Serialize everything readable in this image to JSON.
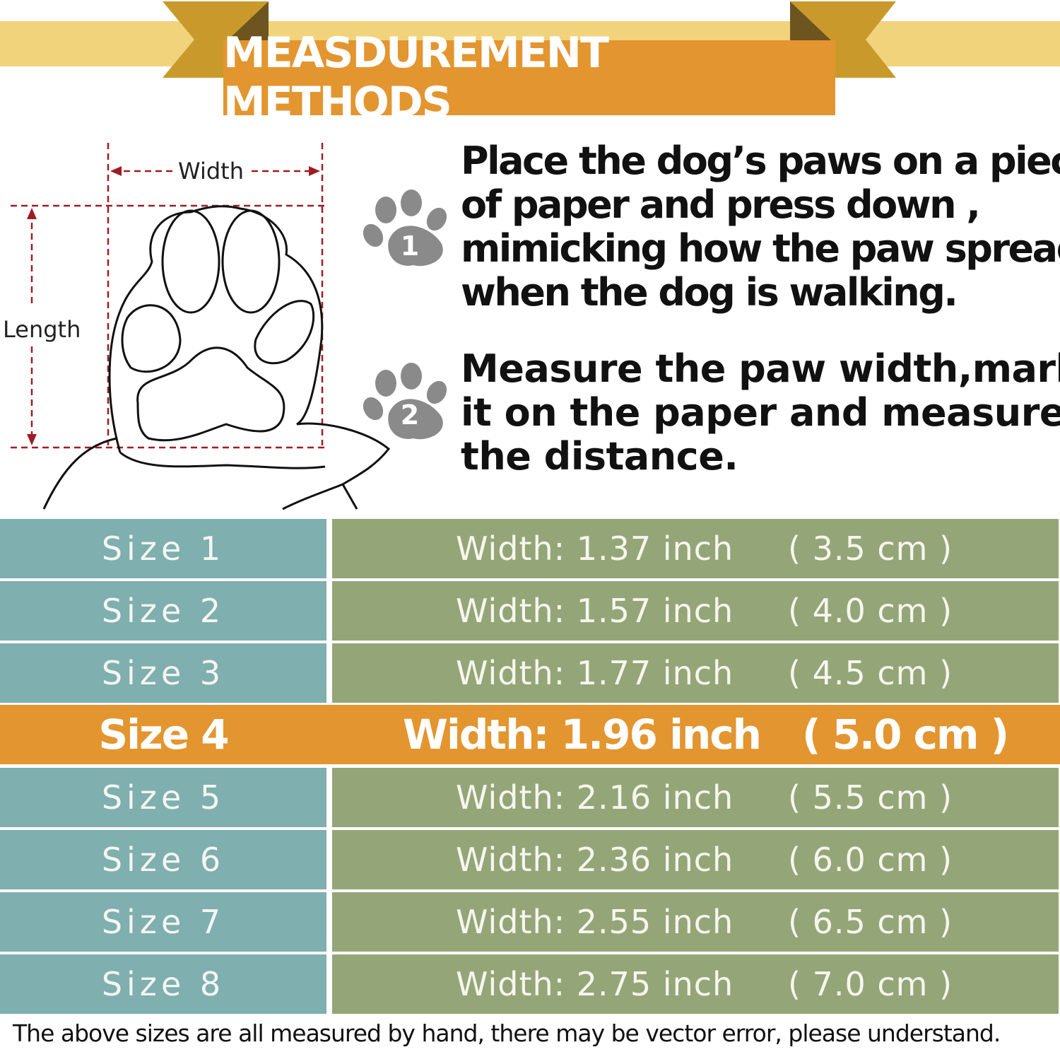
{
  "banner": {
    "title": "MEASDUREMENT METHODS"
  },
  "diagram": {
    "width_label": "Width",
    "length_label": "Length"
  },
  "steps": [
    {
      "number": "1",
      "lines": [
        "Place the dog’s paws on a piece",
        "of paper and press down ,",
        "mimicking how the paw spreads",
        "when the dog is walking."
      ]
    },
    {
      "number": "2",
      "lines": [
        "Measure the paw width,mark",
        "it on the paper and measure",
        "the distance."
      ]
    }
  ],
  "sizes": [
    {
      "size": "Size 1",
      "width": "Width:  1.37 inch",
      "cm": "( 3.5 cm )"
    },
    {
      "size": "Size 2",
      "width": "Width:  1.57 inch",
      "cm": "( 4.0 cm )"
    },
    {
      "size": "Size 3",
      "width": "Width:  1.77 inch",
      "cm": "( 4.5 cm )"
    },
    {
      "size": "Size 4",
      "width": "Width:  1.96 inch",
      "cm": "( 5.0 cm )",
      "highlighted": true
    },
    {
      "size": "Size 5",
      "width": "Width:  2.16 inch",
      "cm": "( 5.5 cm )"
    },
    {
      "size": "Size 6",
      "width": "Width:  2.36 inch",
      "cm": "( 6.0 cm )"
    },
    {
      "size": "Size 7",
      "width": "Width:  2.55 inch",
      "cm": "( 6.5 cm )"
    },
    {
      "size": "Size 8",
      "width": "Width:  2.75 inch",
      "cm": "( 7.0 cm )"
    }
  ],
  "footer": "The above sizes are all measured by hand, there may be vector error, please understand.",
  "colors": {
    "banner": "#e3952f",
    "ribbon": "#f1d37c",
    "ribbon_dark": "#c99a2b",
    "size_cell": "#7fafaf",
    "width_cell": "#94a678",
    "highlight": "#e3952f",
    "dimension_lines": "#a01c24"
  }
}
